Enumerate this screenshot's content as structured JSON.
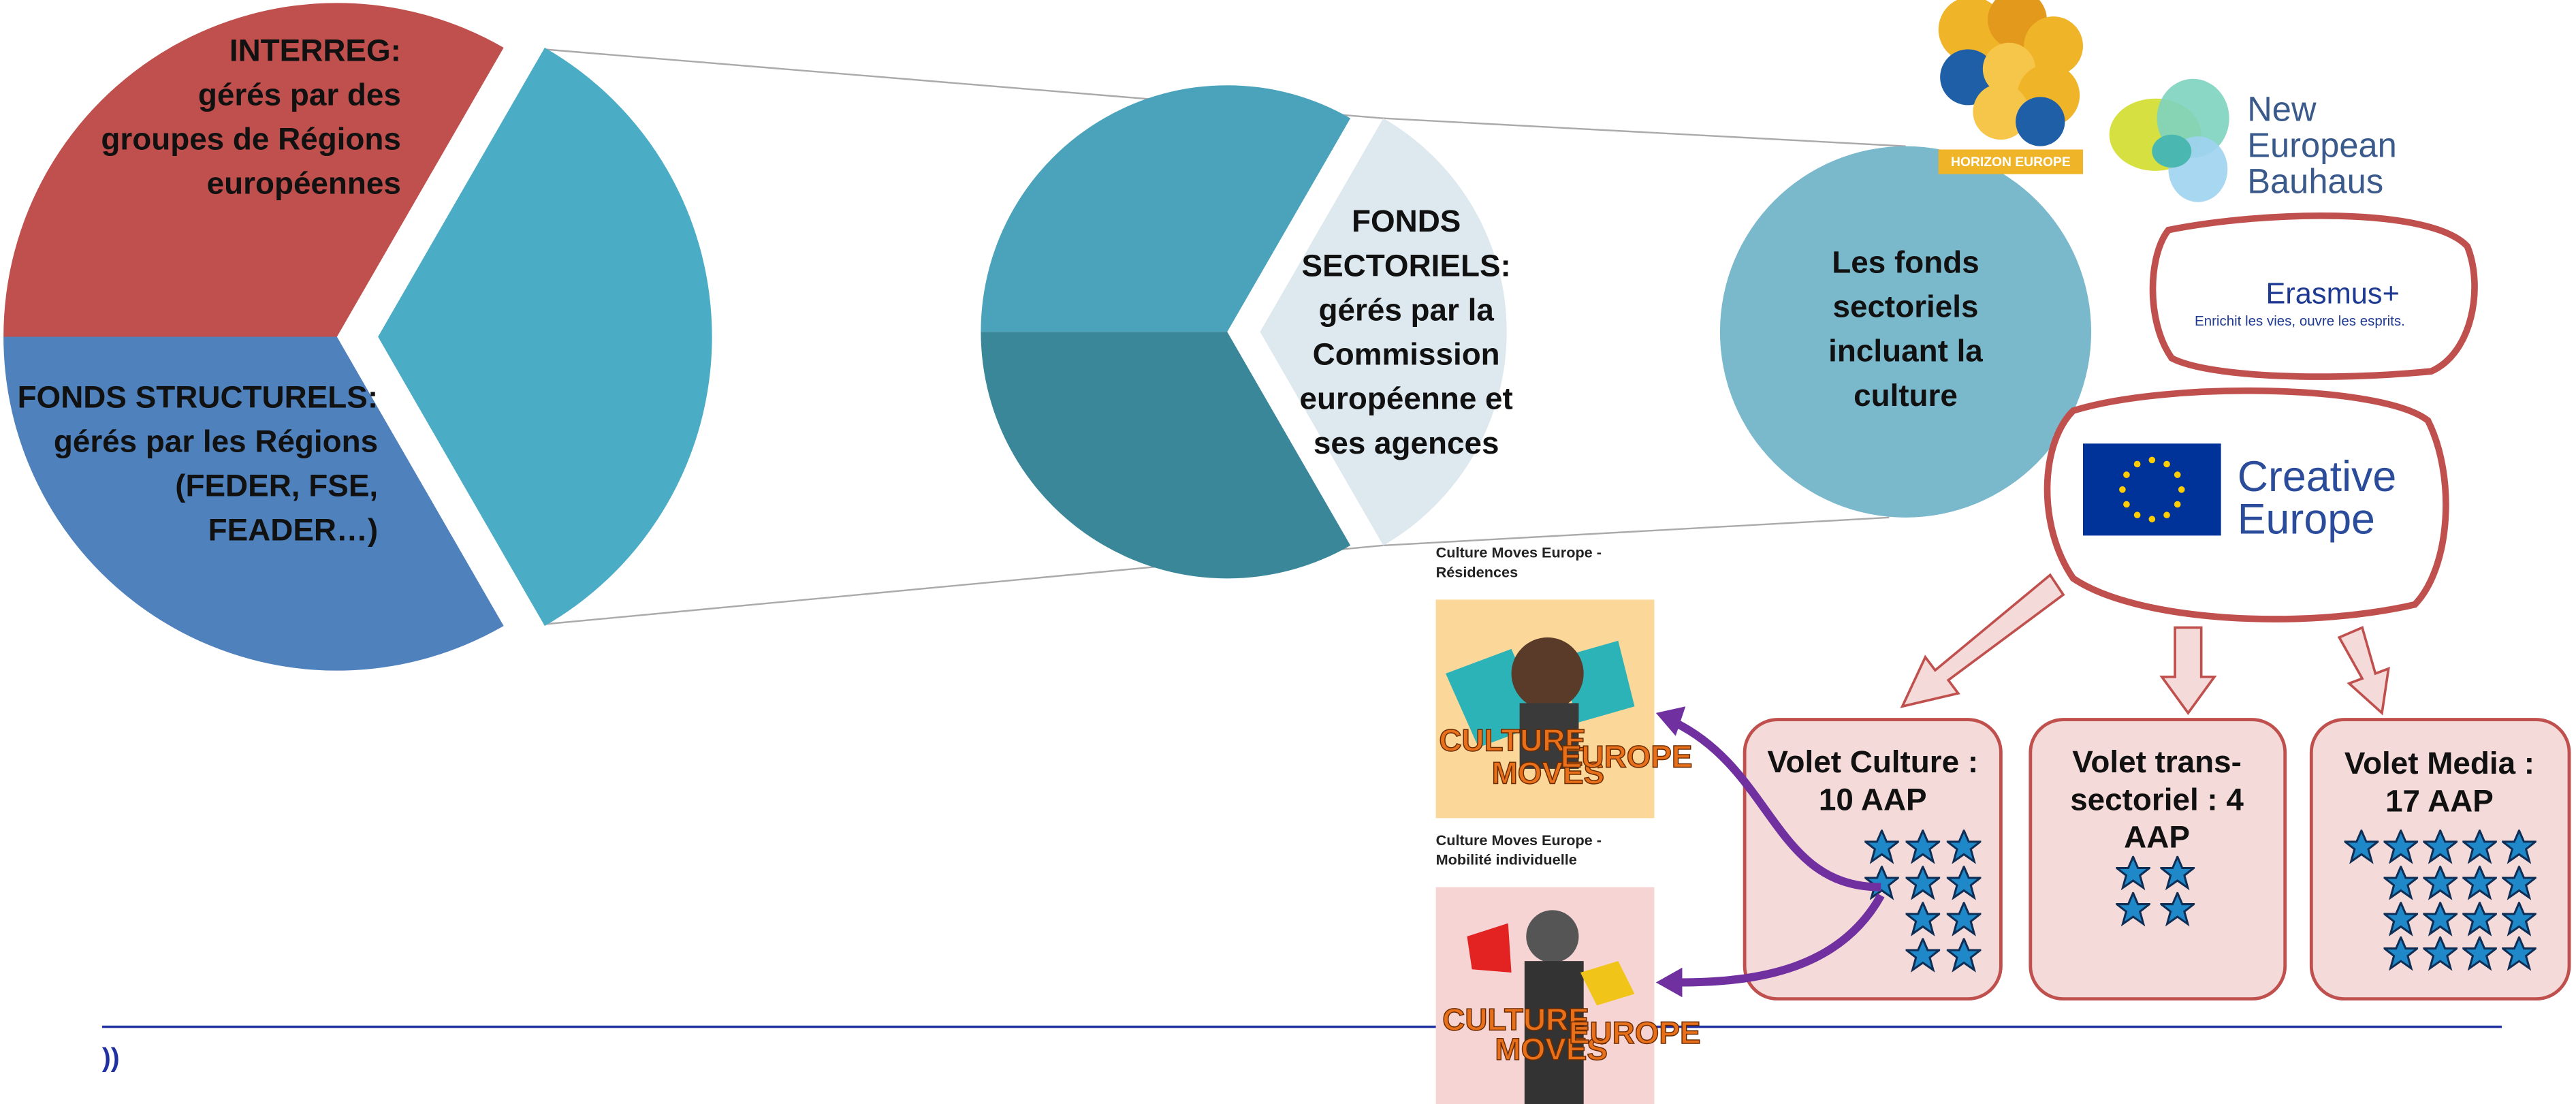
{
  "interreg": {
    "lines": [
      "INTERREG:",
      "gérés par des",
      "groupes de Régions",
      "européennes"
    ]
  },
  "structurels": {
    "lines": [
      "FONDS STRUCTURELS:",
      "gérés par les Régions",
      "(FEDER, FSE,",
      "FEADER…)"
    ]
  },
  "sectoriels": {
    "lines": [
      "FONDS",
      "SECTORIELS:",
      "gérés par la",
      "Commission",
      "européenne et",
      "ses agences"
    ]
  },
  "culture_funds": {
    "lines": [
      "Les fonds",
      "sectoriels",
      "incluant la",
      "culture"
    ]
  },
  "logos": {
    "horizon": "HORIZON EUROPE",
    "bauhaus": [
      "New",
      "European",
      "Bauhaus"
    ],
    "erasmus": {
      "name": "Erasmus+",
      "tagline": "Enrichit les vies, ouvre les esprits."
    },
    "creative": [
      "Creative",
      "Europe"
    ]
  },
  "strands": [
    {
      "lines": [
        "Volet Culture :",
        "10 AAP"
      ]
    },
    {
      "lines": [
        "Volet trans-",
        "sectoriel : 4",
        "AAP"
      ]
    },
    {
      "lines": [
        "Volet Media :",
        "17 AAP"
      ]
    }
  ],
  "programmes": [
    {
      "caption": [
        "Culture Moves Europe -",
        "Résidences"
      ],
      "image_text": [
        "CULTURE",
        "MOVES",
        "EUROPE"
      ]
    },
    {
      "caption": [
        "Culture Moves Europe -",
        "Mobilité individuelle"
      ],
      "image_text": [
        "CULTURE",
        "MOVES",
        "EUROPE"
      ]
    }
  ],
  "footer": "))"
}
